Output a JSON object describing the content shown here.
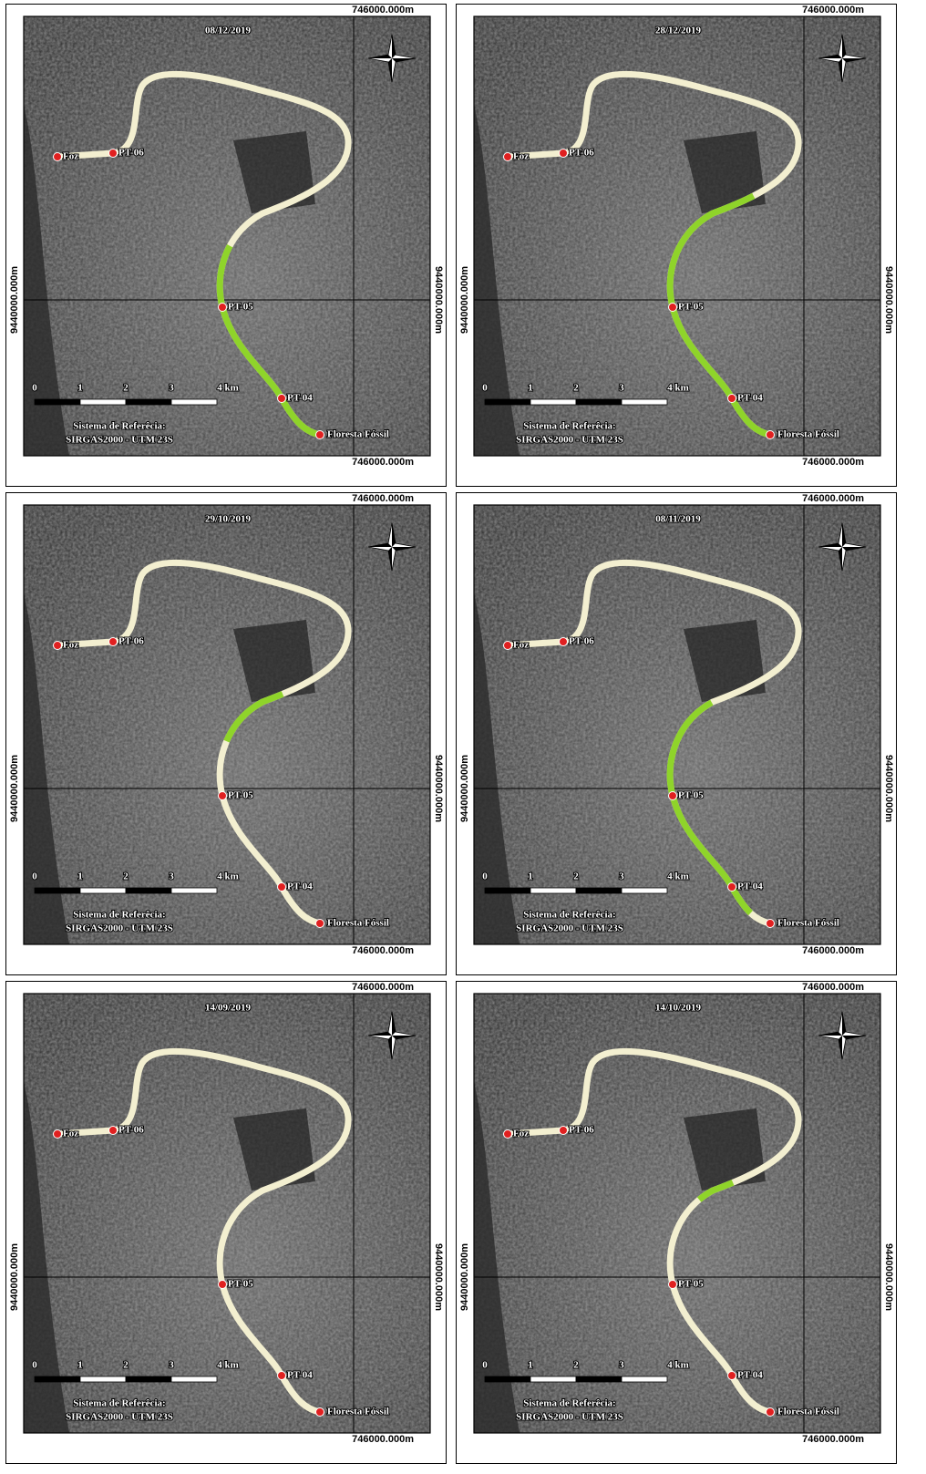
{
  "panels": [
    {
      "date": "08/12/2019",
      "coord_top": "746000.000m",
      "coord_bottom": "746000.000m",
      "coord_left": "9440000.000m",
      "coord_right": "9440000.000m",
      "points": [
        "Foz",
        "PT-06",
        "PT-05",
        "PT-04",
        "Floresta Fóssil"
      ],
      "scale": [
        "0",
        "1",
        "2",
        "3",
        "4 km"
      ],
      "reference": [
        "Sistema de Referêcia:",
        "SIRGAS2000 - UTM 23S"
      ]
    },
    {
      "date": "28/12/2019",
      "coord_top": "746000.000m",
      "coord_bottom": "746000.000m",
      "coord_left": "9440000.000m",
      "coord_right": "9440000.000m",
      "points": [
        "Foz",
        "PT-06",
        "PT-05",
        "PT-04",
        "Floresta Fóssil"
      ],
      "scale": [
        "0",
        "1",
        "2",
        "3",
        "4 km"
      ],
      "reference": [
        "Sistema de Referêcia:",
        "SIRGAS2000 - UTM 23S"
      ]
    },
    {
      "date": "29/10/2019",
      "coord_top": "746000.000m",
      "coord_bottom": "746000.000m",
      "coord_left": "9440000.000m",
      "coord_right": "9440000.000m",
      "points": [
        "Foz",
        "PT-06",
        "PT-05",
        "PT-04",
        "Floresta Fóssil"
      ],
      "scale": [
        "0",
        "1",
        "2",
        "3",
        "4 km"
      ],
      "reference": [
        "Sistema de Referêcia:",
        "SIRGAS2000 - UTM 23S"
      ]
    },
    {
      "date": "08/11/2019",
      "coord_top": "746000.000m",
      "coord_bottom": "746000.000m",
      "coord_left": "9440000.000m",
      "coord_right": "9440000.000m",
      "points": [
        "Foz",
        "PT-06",
        "PT-05",
        "PT-04",
        "Floresta Fóssil"
      ],
      "scale": [
        "0",
        "1",
        "2",
        "3",
        "4 km"
      ],
      "reference": [
        "Sistema de Referêcia:",
        "SIRGAS2000 - UTM 23S"
      ]
    },
    {
      "date": "14/09/2019",
      "coord_top": "746000.000m",
      "coord_bottom": "746000.000m",
      "coord_left": "9440000.000m",
      "coord_right": "9440000.000m",
      "points": [
        "Foz",
        "PT-06",
        "PT-05",
        "PT-04",
        "Floresta Fóssil"
      ],
      "scale": [
        "0",
        "1",
        "2",
        "3",
        "4 km"
      ],
      "reference": [
        "Sistema de Referêcia:",
        "SIRGAS2000 - UTM 23S"
      ]
    },
    {
      "date": "14/10/2019",
      "coord_top": "746000.000m",
      "coord_bottom": "746000.000m",
      "coord_left": "9440000.000m",
      "coord_right": "9440000.000m",
      "points": [
        "Foz",
        "PT-06",
        "PT-05",
        "PT-04",
        "Floresta Fóssil"
      ],
      "scale": [
        "0",
        "1",
        "2",
        "3",
        "4 km"
      ],
      "reference": [
        "Sistema de Referêcia:",
        "SIRGAS2000 - UTM 23S"
      ]
    }
  ]
}
